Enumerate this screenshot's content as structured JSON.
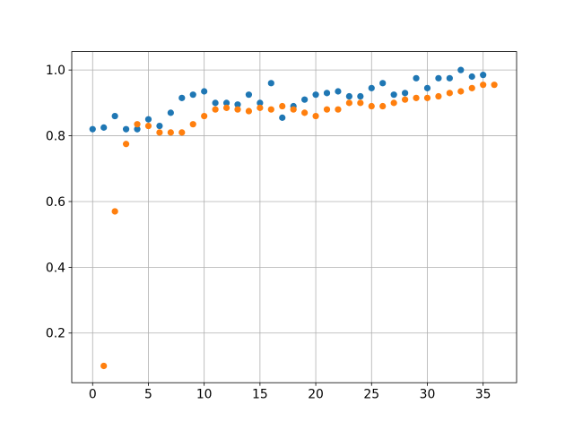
{
  "figure": {
    "background": "#ffffff",
    "title": ""
  },
  "chart_data": {
    "type": "scatter",
    "title": "",
    "xlabel": "",
    "ylabel": "",
    "grid": true,
    "grid_color": "#b0b0b0",
    "spine_color": "#000000",
    "plot_bg": "#ffffff",
    "legend": null,
    "xlim": [
      -1.87,
      38.0
    ],
    "ylim": [
      0.049,
      1.056
    ],
    "xticks": {
      "values": [
        0,
        5,
        10,
        15,
        20,
        25,
        30,
        35
      ],
      "labels": [
        "0",
        "5",
        "10",
        "15",
        "20",
        "25",
        "30",
        "35"
      ]
    },
    "yticks": {
      "values": [
        0.2,
        0.4,
        0.6,
        0.8,
        1.0
      ],
      "labels": [
        "0.2",
        "0.4",
        "0.6",
        "0.8",
        "1.0"
      ]
    },
    "marker_radius": 3.6,
    "series": [
      {
        "name": "series-blue",
        "color": "#1f77b4",
        "marker": "circle",
        "x": [
          0,
          1,
          2,
          3,
          4,
          5,
          6,
          7,
          8,
          9,
          10,
          11,
          12,
          13,
          14,
          15,
          16,
          17,
          18,
          19,
          20,
          21,
          22,
          23,
          24,
          25,
          26,
          27,
          28,
          29,
          30,
          31,
          32,
          33,
          34,
          35
        ],
        "y": [
          0.82,
          0.825,
          0.86,
          0.82,
          0.82,
          0.85,
          0.83,
          0.87,
          0.915,
          0.925,
          0.935,
          0.9,
          0.9,
          0.895,
          0.925,
          0.9,
          0.96,
          0.855,
          0.89,
          0.91,
          0.925,
          0.93,
          0.935,
          0.92,
          0.92,
          0.945,
          0.96,
          0.925,
          0.93,
          0.975,
          0.945,
          0.975,
          0.975,
          1.0,
          0.98,
          0.985
        ]
      },
      {
        "name": "series-orange",
        "color": "#ff7f0e",
        "marker": "circle",
        "x": [
          1,
          2,
          3,
          4,
          5,
          6,
          7,
          8,
          9,
          10,
          11,
          12,
          13,
          14,
          15,
          16,
          17,
          18,
          19,
          20,
          21,
          22,
          23,
          24,
          25,
          26,
          27,
          28,
          29,
          30,
          31,
          32,
          33,
          34,
          35,
          36
        ],
        "y": [
          0.1,
          0.57,
          0.775,
          0.835,
          0.83,
          0.81,
          0.81,
          0.81,
          0.835,
          0.86,
          0.88,
          0.885,
          0.88,
          0.875,
          0.885,
          0.88,
          0.89,
          0.88,
          0.87,
          0.86,
          0.88,
          0.88,
          0.9,
          0.9,
          0.89,
          0.89,
          0.9,
          0.91,
          0.915,
          0.915,
          0.92,
          0.93,
          0.935,
          0.945,
          0.955,
          0.955
        ]
      }
    ]
  }
}
